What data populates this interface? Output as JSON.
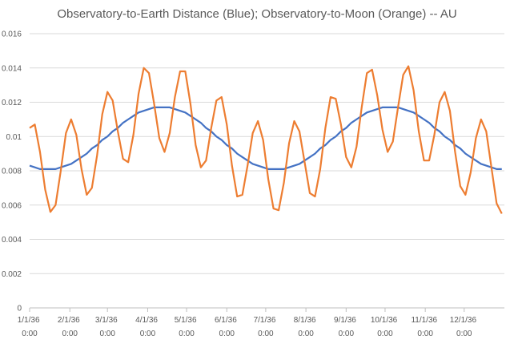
{
  "chart_data": {
    "type": "line",
    "title": "Observatory-to-Earth Distance (Blue); Observatory-to-Moon (Orange) -- AU",
    "x": [
      0,
      4,
      8,
      12,
      16,
      20,
      24,
      28,
      32,
      36,
      40,
      44,
      48,
      52,
      56,
      60,
      64,
      68,
      72,
      76,
      80,
      84,
      88,
      92,
      96,
      100,
      104,
      108,
      112,
      116,
      120,
      124,
      128,
      132,
      136,
      140,
      144,
      148,
      152,
      156,
      160,
      164,
      168,
      172,
      176,
      180,
      184,
      188,
      192,
      196,
      200,
      204,
      208,
      212,
      216,
      220,
      224,
      228,
      232,
      236,
      240,
      244,
      248,
      252,
      256,
      260,
      264,
      268,
      272,
      276,
      280,
      284,
      288,
      292,
      296,
      300,
      304,
      308,
      312,
      316,
      320,
      324,
      328,
      332,
      336,
      340,
      344,
      348,
      352,
      356,
      360,
      364
    ],
    "series": [
      {
        "color": "#4472c4",
        "values": [
          0.0083,
          0.0082,
          0.0081,
          0.0081,
          0.0081,
          0.0081,
          0.0082,
          0.0083,
          0.0084,
          0.0086,
          0.0088,
          0.009,
          0.0093,
          0.0095,
          0.0098,
          0.01,
          0.0103,
          0.0105,
          0.0108,
          0.011,
          0.0112,
          0.0114,
          0.0115,
          0.0116,
          0.0117,
          0.0117,
          0.0117,
          0.0117,
          0.0116,
          0.0115,
          0.0114,
          0.0112,
          0.011,
          0.0108,
          0.0105,
          0.0103,
          0.01,
          0.0098,
          0.0095,
          0.0093,
          0.009,
          0.0088,
          0.0086,
          0.0084,
          0.0083,
          0.0082,
          0.0081,
          0.0081,
          0.0081,
          0.0081,
          0.0082,
          0.0083,
          0.0084,
          0.0086,
          0.0088,
          0.009,
          0.0093,
          0.0095,
          0.0098,
          0.01,
          0.0103,
          0.0105,
          0.0108,
          0.011,
          0.0112,
          0.0114,
          0.0115,
          0.0116,
          0.0117,
          0.0117,
          0.0117,
          0.0117,
          0.0116,
          0.0115,
          0.0114,
          0.0112,
          0.011,
          0.0108,
          0.0105,
          0.0103,
          0.01,
          0.0098,
          0.0095,
          0.0093,
          0.009,
          0.0088,
          0.0086,
          0.0084,
          0.0083,
          0.0082,
          0.0081,
          0.0081
        ]
      },
      {
        "color": "#ed7d31",
        "values": [
          0.0105,
          0.0107,
          0.0091,
          0.0069,
          0.0056,
          0.006,
          0.008,
          0.0102,
          0.011,
          0.0101,
          0.0081,
          0.0066,
          0.007,
          0.0089,
          0.0113,
          0.0126,
          0.0121,
          0.0103,
          0.0087,
          0.0085,
          0.0101,
          0.0125,
          0.014,
          0.0137,
          0.0119,
          0.0099,
          0.0091,
          0.0102,
          0.0123,
          0.0138,
          0.0138,
          0.0119,
          0.0095,
          0.0082,
          0.0086,
          0.0105,
          0.0121,
          0.0123,
          0.0107,
          0.0083,
          0.0065,
          0.0066,
          0.0083,
          0.0102,
          0.0109,
          0.0098,
          0.0075,
          0.0058,
          0.0057,
          0.0073,
          0.0096,
          0.0109,
          0.0103,
          0.0085,
          0.0067,
          0.0065,
          0.0081,
          0.0105,
          0.0123,
          0.0122,
          0.0107,
          0.0088,
          0.0082,
          0.0094,
          0.0117,
          0.0137,
          0.0139,
          0.0124,
          0.0104,
          0.0091,
          0.0097,
          0.0117,
          0.0136,
          0.0141,
          0.0127,
          0.0103,
          0.0086,
          0.0086,
          0.0101,
          0.012,
          0.0126,
          0.0115,
          0.0091,
          0.0071,
          0.0066,
          0.0079,
          0.0099,
          0.011,
          0.0103,
          0.0082,
          0.0061,
          0.0055
        ]
      }
    ],
    "xlim": [
      0,
      366
    ],
    "xticks": [
      {
        "value": 0,
        "label": "1/1/36 0:00"
      },
      {
        "value": 31,
        "label": "2/1/36 0:00"
      },
      {
        "value": 60,
        "label": "3/1/36 0:00"
      },
      {
        "value": 91,
        "label": "4/1/36 0:00"
      },
      {
        "value": 121,
        "label": "5/1/36 0:00"
      },
      {
        "value": 152,
        "label": "6/1/36 0:00"
      },
      {
        "value": 182,
        "label": "7/1/36 0:00"
      },
      {
        "value": 213,
        "label": "8/1/36 0:00"
      },
      {
        "value": 244,
        "label": "9/1/36 0:00"
      },
      {
        "value": 274,
        "label": "10/1/36 0:00"
      },
      {
        "value": 305,
        "label": "11/1/36 0:00"
      },
      {
        "value": 335,
        "label": "12/1/36 0:00"
      }
    ],
    "ylim": [
      0,
      0.016
    ],
    "yticks": [
      0,
      0.002,
      0.004,
      0.006,
      0.008,
      0.01,
      0.012,
      0.014,
      0.016
    ],
    "grid": true
  }
}
